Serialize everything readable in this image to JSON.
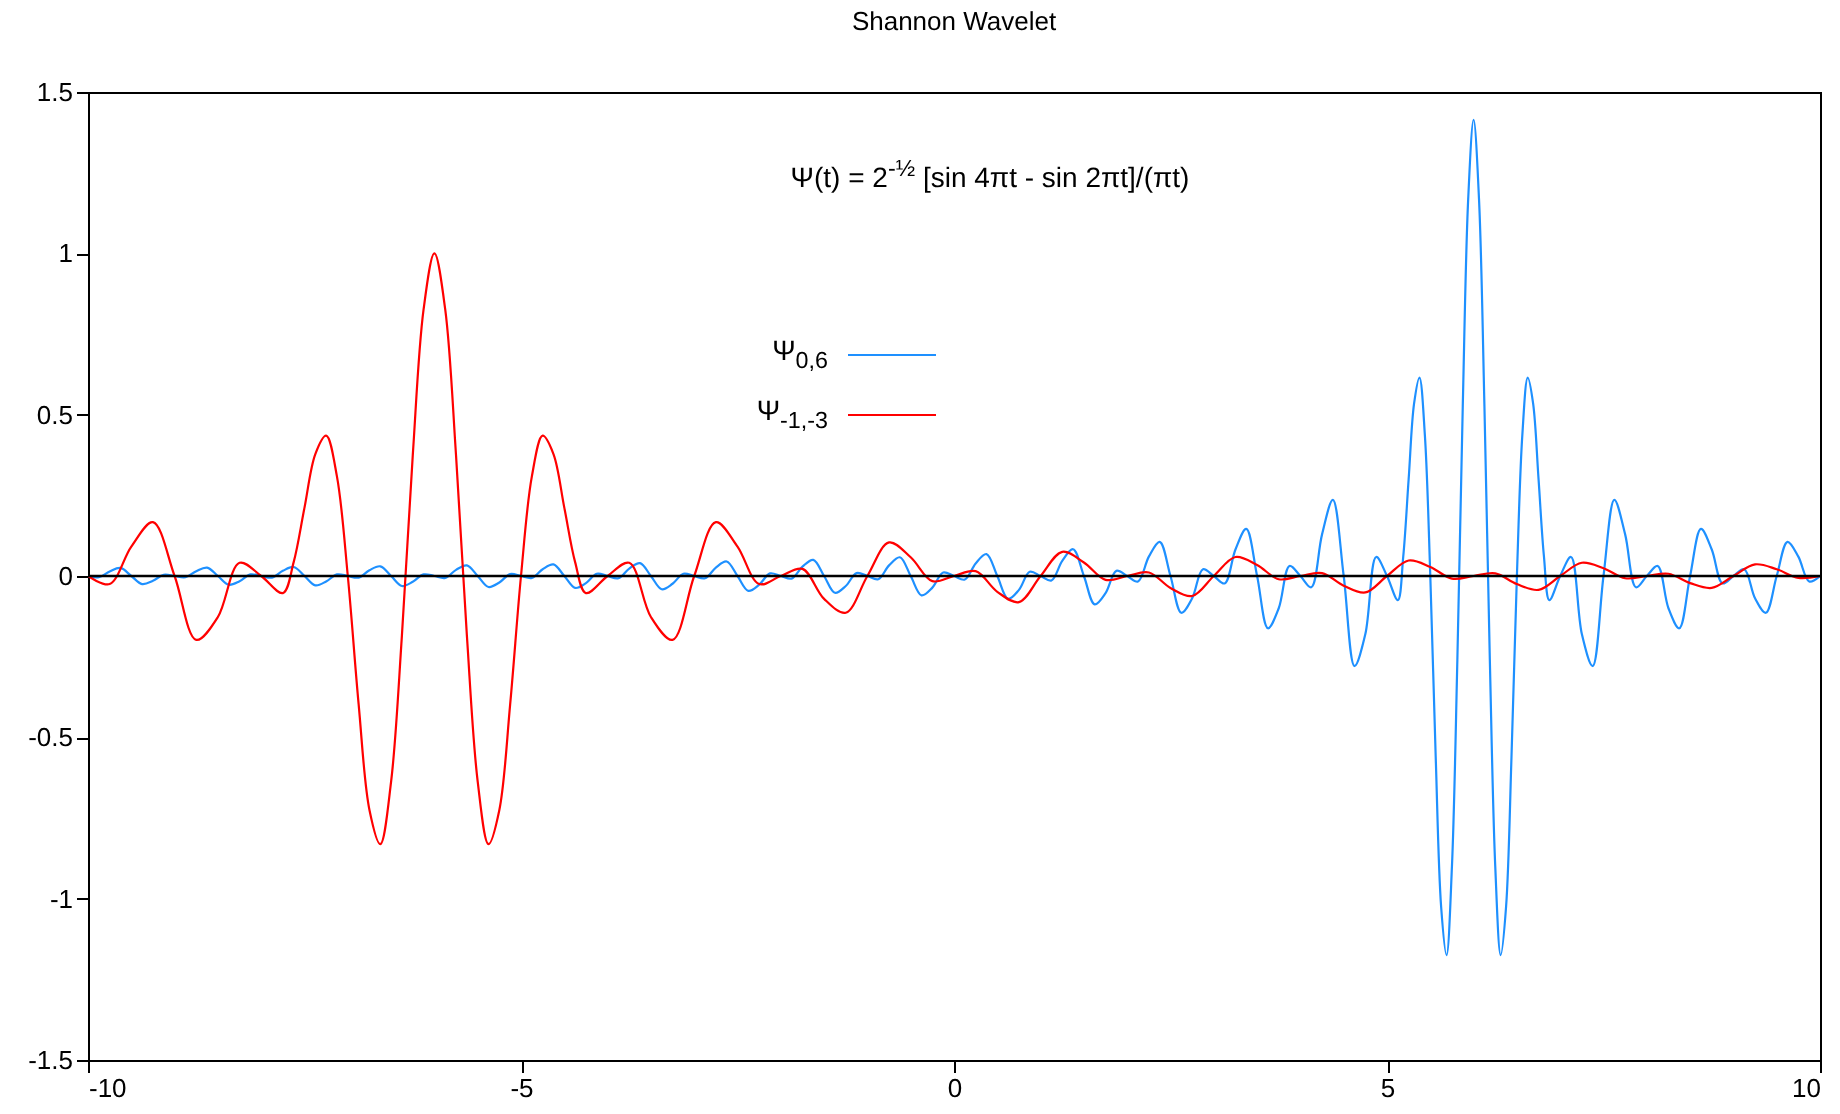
{
  "chart_data": {
    "type": "line",
    "title": "Shannon Wavelet",
    "annotations": [
      "Ψ(t) = 2$^{-½}$ [sin 4πt - sin 2πt]/(πt)"
    ],
    "xlim": [
      -10,
      10
    ],
    "xticks": [
      -10,
      -5,
      0,
      5,
      10
    ],
    "ylim": [
      -1.5,
      1.5
    ],
    "yticks": [
      -1.5,
      -1,
      -0.5,
      0,
      0.5,
      1,
      1.5
    ],
    "legend": "top",
    "ref_lines": [
      {
        "axis": "y",
        "value": 0,
        "color": "#000000"
      }
    ],
    "series": [
      {
        "name": "Ψ$_{0,6}$",
        "color": "#1e90ff",
        "x": [
          -10,
          -9.875,
          -9.75,
          -9.625,
          -9.5,
          -9.375,
          -9.25,
          -9.125,
          -9,
          -8.875,
          -8.75,
          -8.625,
          -8.5,
          -8.375,
          -8.25,
          -8.125,
          -8,
          -7.875,
          -7.75,
          -7.625,
          -7.5,
          -7.375,
          -7.25,
          -7.125,
          -7,
          -6.875,
          -6.75,
          -6.625,
          -6.5,
          -6.375,
          -6.25,
          -6.125,
          -6,
          -5.875,
          -5.75,
          -5.625,
          -5.5,
          -5.375,
          -5.25,
          -5.125,
          -5,
          -4.875,
          -4.75,
          -4.625,
          -4.5,
          -4.375,
          -4.25,
          -4.125,
          -4,
          -3.875,
          -3.75,
          -3.625,
          -3.5,
          -3.375,
          -3.25,
          -3.125,
          -3,
          -2.875,
          -2.75,
          -2.625,
          -2.5,
          -2.375,
          -2.25,
          -2.125,
          -2,
          -1.875,
          -1.75,
          -1.625,
          -1.5,
          -1.375,
          -1.25,
          -1.125,
          -1,
          -0.875,
          -0.75,
          -0.625,
          -0.5,
          -0.375,
          -0.25,
          -0.125,
          0,
          0.125,
          0.25,
          0.375,
          0.5,
          0.625,
          0.75,
          0.875,
          1,
          1.125,
          1.25,
          1.375,
          1.5,
          1.625,
          1.75,
          1.875,
          2,
          2.125,
          2.25,
          2.375,
          2.5,
          2.625,
          2.75,
          2.875,
          3,
          3.125,
          3.25,
          3.375,
          3.5,
          3.625,
          3.75,
          3.875,
          4,
          4.125,
          4.25,
          4.375,
          4.5,
          4.625,
          4.75,
          4.875,
          5,
          5.125,
          5.1875,
          5.25,
          5.3125,
          5.375,
          5.4375,
          5.5,
          5.5625,
          5.625,
          5.6875,
          5.75,
          5.8125,
          5.875,
          5.9375,
          6,
          6.0625,
          6.125,
          6.1875,
          6.25,
          6.3125,
          6.375,
          6.4375,
          6.5,
          6.5625,
          6.625,
          6.6875,
          6.75,
          6.8125,
          6.875,
          7,
          7.125,
          7.25,
          7.375,
          7.5,
          7.625,
          7.75,
          7.875,
          8,
          8.125,
          8.25,
          8.375,
          8.5,
          8.625,
          8.75,
          8.875,
          9,
          9.125,
          9.25,
          9.375,
          9.5,
          9.625,
          9.75,
          9.875,
          10
        ],
        "values": [
          0,
          -0.004,
          0.014,
          0.025,
          0,
          -0.025,
          -0.015,
          0.004,
          0,
          -0.004,
          0.015,
          0.026,
          0,
          -0.027,
          -0.016,
          0.005,
          0,
          -0.005,
          0.016,
          0.028,
          0,
          -0.029,
          -0.017,
          0.005,
          0,
          -0.005,
          0.018,
          0.03,
          0,
          -0.031,
          -0.018,
          0.005,
          0,
          -0.006,
          0.019,
          0.033,
          0,
          -0.034,
          -0.02,
          0.006,
          0,
          -0.006,
          0.021,
          0.036,
          0,
          -0.037,
          -0.022,
          0.007,
          0,
          -0.007,
          0.023,
          0.04,
          0,
          -0.041,
          -0.024,
          0.007,
          0,
          -0.007,
          0.026,
          0.045,
          0,
          -0.046,
          -0.027,
          0.008,
          0,
          -0.008,
          0.029,
          0.05,
          0,
          -0.052,
          -0.031,
          0.009,
          0,
          -0.01,
          0.033,
          0.058,
          0,
          -0.06,
          -0.036,
          0.011,
          0,
          -0.011,
          0.039,
          0.068,
          0,
          -0.071,
          -0.043,
          0.013,
          0,
          -0.014,
          0.047,
          0.083,
          0,
          -0.088,
          -0.053,
          0.016,
          0,
          -0.017,
          0.06,
          0.106,
          0,
          -0.114,
          -0.069,
          0.021,
          0,
          -0.023,
          0.082,
          0.146,
          0,
          -0.162,
          -0.1,
          0.031,
          0,
          -0.035,
          0.129,
          0.236,
          0,
          -0.279,
          -0.18,
          0.059,
          0,
          -0.075,
          0.06,
          0.3,
          0.534,
          0.615,
          0.436,
          0,
          -0.561,
          -1.025,
          -1.175,
          -0.9,
          -0.26,
          0.527,
          1.168,
          1.414,
          1.168,
          0.527,
          -0.26,
          -0.9,
          -1.175,
          -1.025,
          -0.561,
          0,
          0.436,
          0.615,
          0.534,
          0.3,
          0.06,
          -0.075,
          0,
          0.059,
          -0.18,
          -0.279,
          0,
          0.236,
          0.129,
          -0.035,
          0,
          0.031,
          -0.1,
          -0.162,
          0,
          0.146,
          0.082,
          -0.023,
          0,
          0.021,
          -0.069,
          -0.114,
          0,
          0.106,
          0.06,
          -0.017,
          0
        ]
      },
      {
        "name": "Ψ$_{-1,-3}$",
        "color": "#ff0000",
        "x": [
          -10,
          -9.75,
          -9.5,
          -9.25,
          -9,
          -8.75,
          -8.5,
          -8.25,
          -8,
          -7.75,
          -7.625,
          -7.5,
          -7.375,
          -7.25,
          -7.125,
          -7,
          -6.875,
          -6.75,
          -6.625,
          -6.5,
          -6.375,
          -6.25,
          -6.125,
          -6,
          -5.875,
          -5.75,
          -5.625,
          -5.5,
          -5.375,
          -5.25,
          -5.125,
          -5,
          -4.875,
          -4.75,
          -4.625,
          -4.5,
          -4.375,
          -4.25,
          -4,
          -3.75,
          -3.5,
          -3.25,
          -3,
          -2.75,
          -2.5,
          -2.25,
          -2,
          -1.75,
          -1.5,
          -1.25,
          -1,
          -0.75,
          -0.5,
          -0.25,
          0,
          0.25,
          0.5,
          0.75,
          1,
          1.25,
          1.5,
          1.75,
          2,
          2.25,
          2.5,
          2.75,
          3,
          3.25,
          3.5,
          3.75,
          4,
          4.25,
          4.5,
          4.75,
          5,
          5.25,
          5.5,
          5.75,
          6,
          6.25,
          6.5,
          6.75,
          7,
          7.25,
          7.5,
          7.75,
          8,
          8.25,
          8.5,
          8.75,
          9,
          9.25,
          9.5,
          9.75,
          10
        ],
        "values": [
          0,
          -0.025,
          0.091,
          0.167,
          0,
          -0.198,
          -0.127,
          0.041,
          0,
          -0.053,
          0.043,
          0.212,
          0.378,
          0.435,
          0.308,
          0,
          -0.397,
          -0.725,
          -0.831,
          -0.637,
          -0.184,
          0.373,
          0.826,
          1.0,
          0.826,
          0.373,
          -0.184,
          -0.637,
          -0.831,
          -0.725,
          -0.397,
          0,
          0.308,
          0.435,
          0.378,
          0.212,
          0.043,
          -0.053,
          0,
          0.041,
          -0.127,
          -0.198,
          0,
          0.167,
          0.091,
          -0.025,
          0,
          0.022,
          -0.071,
          -0.114,
          0,
          0.104,
          0.058,
          -0.016,
          0,
          0.015,
          -0.049,
          -0.081,
          0,
          0.075,
          0.042,
          -0.012,
          0,
          0.011,
          -0.037,
          -0.062,
          0,
          0.059,
          0.034,
          -0.01,
          0,
          0.009,
          -0.03,
          -0.051,
          0,
          0.048,
          0.028,
          -0.008,
          0,
          0.008,
          -0.025,
          -0.043,
          0,
          0.041,
          0.024,
          -0.007,
          0,
          0.007,
          -0.022,
          -0.037,
          0,
          0.036,
          0.021,
          -0.006,
          0
        ]
      }
    ]
  }
}
